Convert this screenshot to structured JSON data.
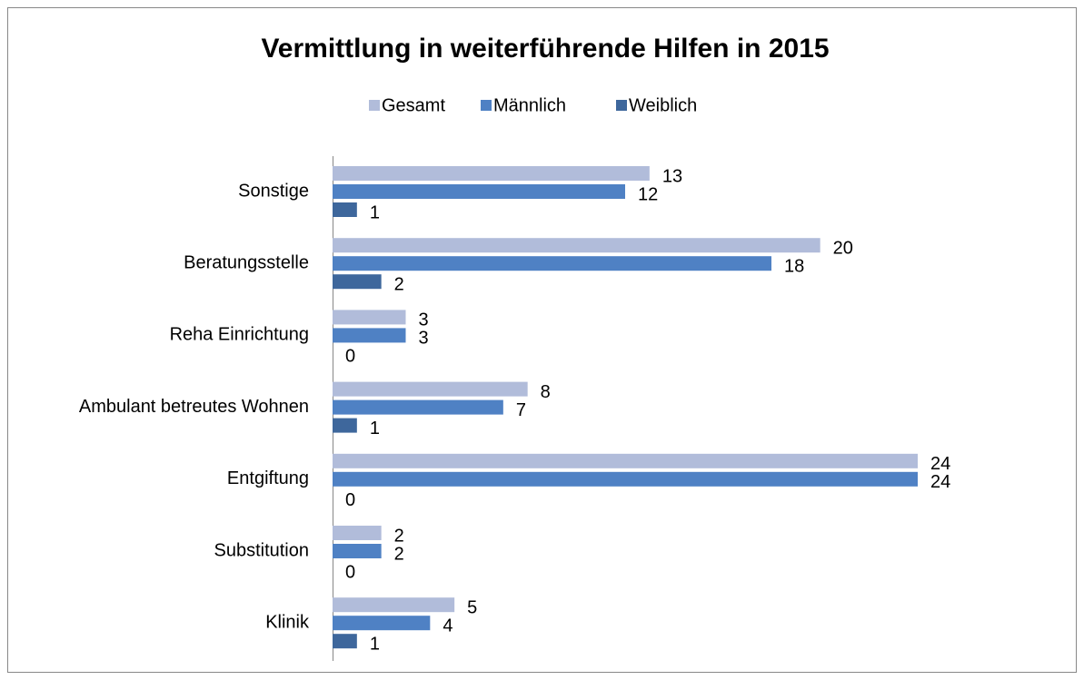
{
  "chart_data": {
    "type": "barh",
    "title": "Vermittlung in weiterführende Hilfen in 2015",
    "categories": [
      "Sonstige",
      "Beratungsstelle",
      "Reha Einrichtung",
      "Ambulant betreutes Wohnen",
      "Entgiftung",
      "Substitution",
      "Klinik"
    ],
    "series": [
      {
        "name": "Gesamt",
        "color": "#b1bcda",
        "values": [
          13,
          20,
          3,
          8,
          24,
          2,
          5
        ]
      },
      {
        "name": "Männlich",
        "color": "#4f81c4",
        "values": [
          12,
          18,
          3,
          7,
          24,
          2,
          4
        ]
      },
      {
        "name": "Weiblich",
        "color": "#3e679c",
        "values": [
          1,
          2,
          0,
          1,
          0,
          0,
          1
        ]
      }
    ],
    "xlim": [
      0,
      24
    ],
    "legend": "top"
  }
}
